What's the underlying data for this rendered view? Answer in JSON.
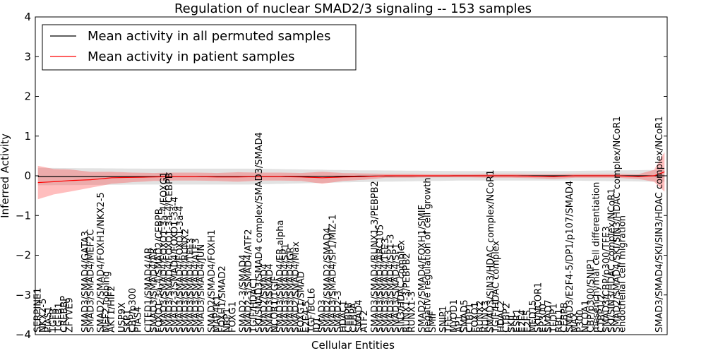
{
  "chart_data": {
    "type": "line",
    "title": "Regulation of nuclear SMAD2/3 signaling -- 153 samples",
    "xlabel": "Cellular Entities",
    "ylabel": "Inferred Activity",
    "ylim": [
      -4,
      4
    ],
    "y_ticks": [
      "−4",
      "−3",
      "−2",
      "−1",
      "0",
      "1",
      "2",
      "3",
      "4"
    ],
    "grid": false,
    "legend_position": "top-left",
    "n_entities": 120,
    "series": [
      {
        "name": "Mean activity in all permuted samples",
        "color": "#000000",
        "points": [
          [
            0,
            -0.02
          ],
          [
            20,
            -0.02
          ],
          [
            40,
            -0.02
          ],
          [
            60,
            -0.01
          ],
          [
            80,
            0.0
          ],
          [
            100,
            0.0
          ],
          [
            119,
            0.0
          ]
        ],
        "band": [
          [
            0,
            0.22
          ],
          [
            20,
            0.2
          ],
          [
            40,
            0.2
          ],
          [
            60,
            0.15
          ],
          [
            80,
            0.12
          ],
          [
            100,
            0.12
          ],
          [
            119,
            0.15
          ]
        ]
      },
      {
        "name": "Mean activity in patient samples",
        "color": "#ff0000",
        "points": [
          [
            0,
            -0.17
          ],
          [
            3,
            -0.15
          ],
          [
            6,
            -0.12
          ],
          [
            10,
            -0.1
          ],
          [
            14,
            -0.05
          ],
          [
            18,
            -0.04
          ],
          [
            22,
            -0.03
          ],
          [
            26,
            -0.02
          ],
          [
            30,
            -0.02
          ],
          [
            34,
            -0.03
          ],
          [
            38,
            -0.03
          ],
          [
            42,
            -0.02
          ],
          [
            46,
            -0.02
          ],
          [
            50,
            -0.03
          ],
          [
            54,
            -0.05
          ],
          [
            58,
            -0.03
          ],
          [
            62,
            -0.02
          ],
          [
            66,
            0.0
          ],
          [
            70,
            0.0
          ],
          [
            74,
            0.0
          ],
          [
            78,
            0.0
          ],
          [
            82,
            0.0
          ],
          [
            86,
            0.0
          ],
          [
            90,
            0.0
          ],
          [
            94,
            -0.01
          ],
          [
            98,
            -0.02
          ],
          [
            102,
            0.0
          ],
          [
            106,
            0.0
          ],
          [
            110,
            0.0
          ],
          [
            114,
            -0.02
          ],
          [
            117,
            0.0
          ],
          [
            119,
            0.1
          ]
        ],
        "band": [
          [
            0,
            0.42
          ],
          [
            3,
            0.32
          ],
          [
            6,
            0.28
          ],
          [
            10,
            0.2
          ],
          [
            14,
            0.15
          ],
          [
            18,
            0.12
          ],
          [
            22,
            0.1
          ],
          [
            26,
            0.1
          ],
          [
            30,
            0.1
          ],
          [
            34,
            0.1
          ],
          [
            38,
            0.12
          ],
          [
            42,
            0.1
          ],
          [
            46,
            0.1
          ],
          [
            50,
            0.1
          ],
          [
            54,
            0.15
          ],
          [
            58,
            0.1
          ],
          [
            62,
            0.08
          ],
          [
            66,
            0.05
          ],
          [
            70,
            0.05
          ],
          [
            74,
            0.04
          ],
          [
            78,
            0.04
          ],
          [
            82,
            0.04
          ],
          [
            86,
            0.05
          ],
          [
            90,
            0.05
          ],
          [
            94,
            0.05
          ],
          [
            98,
            0.06
          ],
          [
            102,
            0.05
          ],
          [
            106,
            0.05
          ],
          [
            110,
            0.05
          ],
          [
            114,
            0.06
          ],
          [
            117,
            0.15
          ],
          [
            119,
            0.5
          ]
        ]
      }
    ],
    "entity_labels": [
      [
        0,
        "SERPINE1"
      ],
      [
        1,
        "NKX2-5"
      ],
      [
        2,
        "PIAS1"
      ],
      [
        3,
        "TGFB"
      ],
      [
        4,
        "TGFB1"
      ],
      [
        5,
        "CREBBP"
      ],
      [
        6,
        "ZFYVE9"
      ],
      [
        9,
        "SMAD3/SMAD4/GATA3"
      ],
      [
        10,
        "SMAD3/SMAD4/MEF2C"
      ],
      [
        12,
        "SMAD2/SMAD4/FOXH1/NKX2-5"
      ],
      [
        13,
        "MEF2 looping"
      ],
      [
        14,
        "AKT1/HIF2"
      ],
      [
        16,
        "USP9X"
      ],
      [
        17,
        "SKP1"
      ],
      [
        18,
        "CBP/p300"
      ],
      [
        19,
        "PIAS4"
      ],
      [
        21,
        "CITED1/SMAD4/AR"
      ],
      [
        22,
        "SMAD3/SMAD4/AR"
      ],
      [
        23,
        "FOXO1-3a-4/SMAD2/CEBPB"
      ],
      [
        24,
        "SMAD3/SMAD4/FOXO1-3a-4/FOXG1"
      ],
      [
        25,
        "SMAD3/SMAD4/FOXO1-3a-4/CEBPB"
      ],
      [
        26,
        "SMAD2-3/SMAD4/FOXO1-3a-4"
      ],
      [
        27,
        "SMAD3/SMAD4/FOXO1-3a-4"
      ],
      [
        28,
        "SMAD3/SMAD4/RUNX2"
      ],
      [
        29,
        "SMAD3/SMAD4/TFE3"
      ],
      [
        30,
        "SMAD3/SMAD4/ATF3"
      ],
      [
        31,
        "SMAD3/SMAD4/JUN"
      ],
      [
        33,
        "SMAD2/SMAD4/FOXH1"
      ],
      [
        34,
        "MAP4K1"
      ],
      [
        35,
        "FOXH1/SMAD2"
      ],
      [
        36,
        "NRP1"
      ],
      [
        37,
        "FOXG1"
      ],
      [
        39,
        "SMAD2-3/SMAD4"
      ],
      [
        40,
        "SMAD2-3/SMAD4/ATF2"
      ],
      [
        41,
        "TGIF/HDAC1"
      ],
      [
        42,
        "SKI/SMAD3/SMAD4 complex/SMAD3/SMAD4"
      ],
      [
        43,
        "SMAD2/SMAD4"
      ],
      [
        44,
        "SMAD3/SMAD4"
      ],
      [
        45,
        "NCOR1/TGIF"
      ],
      [
        46,
        "SMAD3/SMAD4/ER alpha"
      ],
      [
        47,
        "SMAD3/SMAD4/SP1"
      ],
      [
        48,
        "SMAD3/SMAD4/GR"
      ],
      [
        49,
        "SMAD2/SMAD4/Max"
      ],
      [
        50,
        "FOXG1/SMAD"
      ],
      [
        51,
        "E2F4-5"
      ],
      [
        52,
        "TGF/BCL6"
      ],
      [
        53,
        "ID1"
      ],
      [
        54,
        "SMAD3"
      ],
      [
        55,
        "SMAD2/SMAD2/SMAD4"
      ],
      [
        56,
        "SMAD3/SMAD4/SP1/MIZ-1"
      ],
      [
        57,
        "SMAD2-3"
      ],
      [
        58,
        "HDAC1"
      ],
      [
        59,
        "CEBPB"
      ],
      [
        60,
        "CEBPA"
      ],
      [
        61,
        "SMAD4"
      ],
      [
        62,
        "ATF2"
      ],
      [
        64,
        "SMAD3/SMAD4/RUNX1-3/PEBPB2"
      ],
      [
        65,
        "SMAD3/SMAD4/ARC105"
      ],
      [
        66,
        "SMAD3/SMAD4/TFE3"
      ],
      [
        67,
        "SMAD3/SMAD4/SP1-3"
      ],
      [
        68,
        "SMAD3/SMAD4/SP1"
      ],
      [
        69,
        "SIN3/HDAC complex"
      ],
      [
        70,
        "RUNX1-3/PEBPB2"
      ],
      [
        71,
        "RUNX1-3"
      ],
      [
        73,
        "SMAD2/SMAD4/FOXH1/SMIF"
      ],
      [
        74,
        "negative regulation of cell growth"
      ],
      [
        75,
        "SMIF"
      ],
      [
        77,
        "SNIP1"
      ],
      [
        78,
        "TFE3"
      ],
      [
        79,
        "MYOD1"
      ],
      [
        80,
        "AP1"
      ],
      [
        81,
        "SMAD5"
      ],
      [
        82,
        "CTBP1"
      ],
      [
        83,
        "FOXO1"
      ],
      [
        84,
        "RUNX2"
      ],
      [
        85,
        "RUNX3"
      ],
      [
        86,
        "SMAD3/SIN3/HDAC complex/NCoR1"
      ],
      [
        87,
        "TGIF/HDAC complex"
      ],
      [
        88,
        "HDAC2"
      ],
      [
        89,
        "CTBP2"
      ],
      [
        90,
        "SKIL"
      ],
      [
        91,
        "ESR1"
      ],
      [
        92,
        "E2F4"
      ],
      [
        93,
        "E2F5"
      ],
      [
        94,
        "MED15"
      ],
      [
        95,
        "SKI/NCOR1"
      ],
      [
        96,
        "EP300"
      ],
      [
        97,
        "SMAD7"
      ],
      [
        98,
        "TFDP1"
      ],
      [
        99,
        "RBL1"
      ],
      [
        100,
        "CEBPB"
      ],
      [
        101,
        "SMAD3/E2F4-5/DP1/p107/SMAD4"
      ],
      [
        102,
        "MAX"
      ],
      [
        103,
        "P300"
      ],
      [
        104,
        "NCOA1"
      ],
      [
        105,
        "CBP/p300/SNIP1"
      ],
      [
        106,
        "mesenchymal cell differentiation"
      ],
      [
        107,
        "CTBP1/2"
      ],
      [
        108,
        "SMAD3/CBP/p300/TFE3"
      ],
      [
        109,
        "SKI/SIN3/HDAC complex/NCoR1"
      ],
      [
        110,
        "SMAD2/SMAD4/SKI/SIN3/HDAC complex/NCoR1"
      ],
      [
        111,
        "endothelial cell migration"
      ],
      [
        118,
        "SMAD3/SMAD4/SKI/SIN3/HDAC complex/NCoR1"
      ]
    ]
  },
  "legend": {
    "items": [
      {
        "label": "Mean activity in all permuted samples",
        "color": "#000000"
      },
      {
        "label": "Mean activity in patient samples",
        "color": "#ff0000"
      }
    ]
  }
}
